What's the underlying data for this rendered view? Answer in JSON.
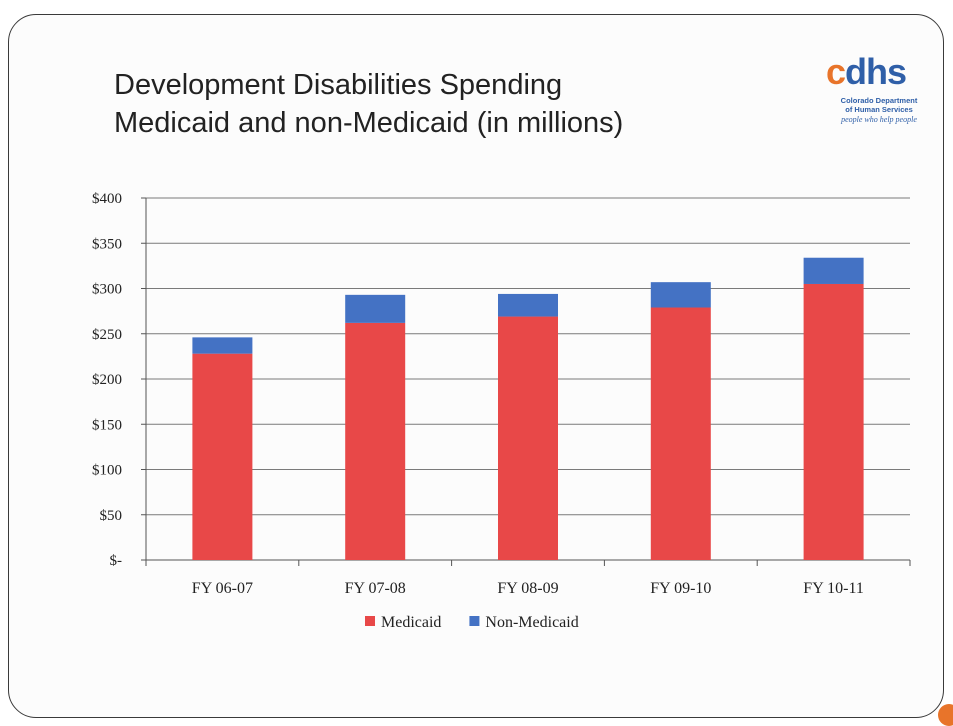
{
  "slide": {
    "title_line1": "Development Disabilities Spending",
    "title_line2": "Medicaid and non-Medicaid (in millions)"
  },
  "logo": {
    "wordmark_c": "c",
    "wordmark_rest": "dhs",
    "line1": "Colorado Department",
    "line2": "of Human Services",
    "tagline": "people who help people",
    "colors": {
      "orange": "#e8742a",
      "blue": "#2f5fa8"
    }
  },
  "chart_data": {
    "type": "bar",
    "stacked": true,
    "categories": [
      "FY 06-07",
      "FY 07-08",
      "FY 08-09",
      "FY 09-10",
      "FY 10-11"
    ],
    "series": [
      {
        "name": "Medicaid",
        "color": "#e84848",
        "values": [
          228,
          262,
          269,
          279,
          305
        ]
      },
      {
        "name": "Non-Medicaid",
        "color": "#4472c4",
        "values": [
          18,
          31,
          25,
          28,
          29
        ]
      }
    ],
    "ylim": [
      0,
      400
    ],
    "yticks": [
      0,
      50,
      100,
      150,
      200,
      250,
      300,
      350,
      400
    ],
    "ytick_labels": [
      "$-",
      "$50",
      "$100",
      "$150",
      "$200",
      "$250",
      "$300",
      "$350",
      "$400"
    ],
    "grid": true,
    "legend_position": "bottom",
    "title": "",
    "xlabel": "",
    "ylabel": ""
  }
}
